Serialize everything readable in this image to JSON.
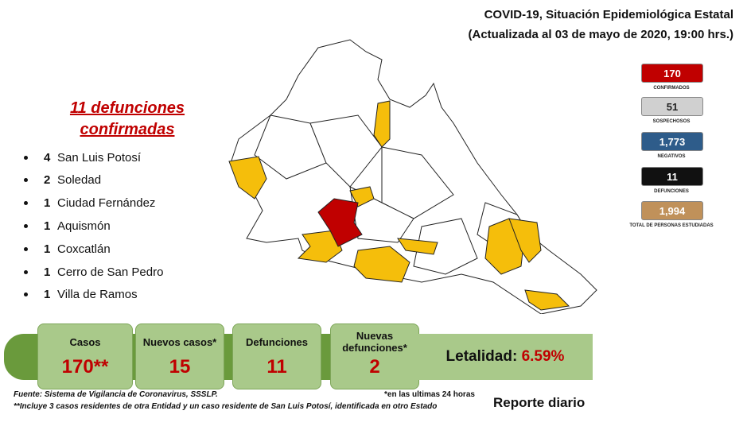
{
  "header": {
    "title": "COVID-19, Situación Epidemiológica Estatal",
    "subtitle": "(Actualizada al 03 de mayo de 2020, 19:00 hrs.)"
  },
  "deaths": {
    "heading": [
      "11 defunciones",
      "confirmadas"
    ],
    "items": [
      {
        "count": 4,
        "place": "San Luis Potosí"
      },
      {
        "count": 2,
        "place": "Soledad"
      },
      {
        "count": 1,
        "place": "Ciudad Fernández"
      },
      {
        "count": 1,
        "place": "Aquismón"
      },
      {
        "count": 1,
        "place": "Coxcatlán"
      },
      {
        "count": 1,
        "place": "Cerro de San Pedro"
      },
      {
        "count": 1,
        "place": "Villa de Ramos"
      }
    ]
  },
  "stats": [
    {
      "value": "170",
      "label": "CONFIRMADOS"
    },
    {
      "value": "51",
      "label": "SOSPECHOSOS"
    },
    {
      "value": "1,773",
      "label": "NEGATIVOS"
    },
    {
      "value": "11",
      "label": "DEFUNCIONES"
    },
    {
      "value": "1,994",
      "label": "TOTAL DE PERSONAS ESTUDIADAS"
    }
  ],
  "summary": [
    {
      "label": "Casos",
      "value": "170**"
    },
    {
      "label": "Nuevos casos*",
      "value": "15"
    },
    {
      "label": "Defunciones",
      "value": "11"
    },
    {
      "label": "Nuevas defunciones*",
      "value": "2"
    }
  ],
  "lethality": {
    "label": "Letalidad:",
    "value": "6.59%"
  },
  "footnotes": [
    "Fuente: Sistema de Vigilancia  de Coronavirus, SSSLP.",
    "**Incluye 3 casos residentes de otra Entidad y un caso residente de San Luis Potosí, identificada en otro Estado",
    "*en las ultimas 24 horas"
  ],
  "report": "Reporte diario"
}
